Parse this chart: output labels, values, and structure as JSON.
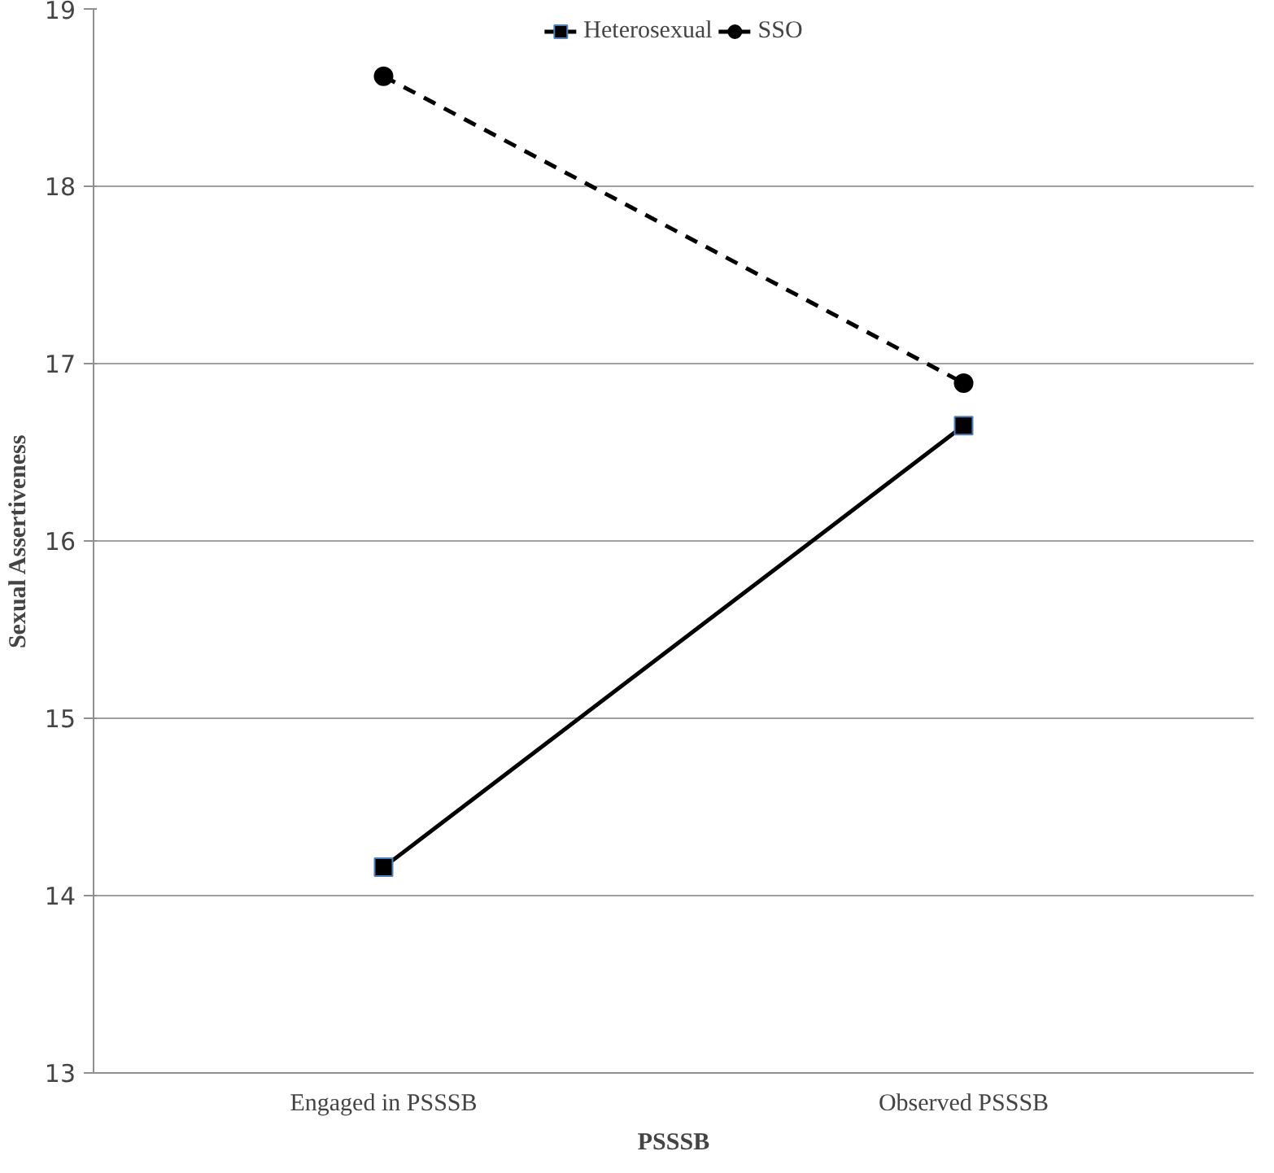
{
  "chart_data": {
    "type": "line",
    "xlabel": "PSSSB",
    "ylabel": "Sexual Assertiveness",
    "categories": [
      "Engaged in PSSSB",
      "Observed PSSSB"
    ],
    "series": [
      {
        "name": "Heterosexual",
        "color": "#000000",
        "values": [
          14.16,
          16.65
        ],
        "marker": "square",
        "line_style": "solid"
      },
      {
        "name": "SSO",
        "color": "#000000",
        "values": [
          18.62,
          16.89
        ],
        "marker": "circle",
        "line_style": "dashed"
      }
    ],
    "ylim": [
      13,
      19
    ],
    "yticks": [
      13,
      14,
      15,
      16,
      17,
      18,
      19
    ],
    "grid": "y",
    "legend": "top"
  }
}
